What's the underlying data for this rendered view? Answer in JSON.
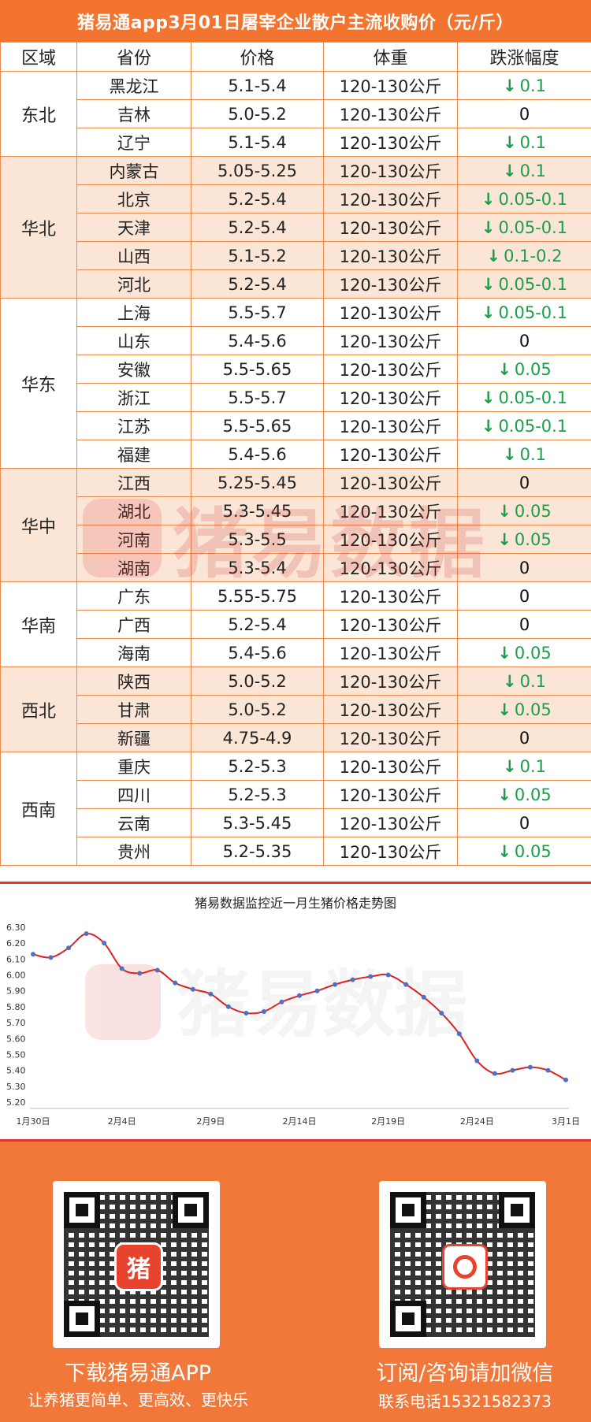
{
  "title": "猪易通app3月01日屠宰企业散户主流收购价（元/斤）",
  "table": {
    "headers": [
      "区域",
      "省份",
      "价格",
      "体重",
      "跌涨幅度"
    ],
    "rows": [
      {
        "region": "东北",
        "province": "黑龙江",
        "price": "5.1-5.4",
        "weight": "120-130公斤",
        "dir": "down",
        "change": "0.1"
      },
      {
        "region": "东北",
        "province": "吉林",
        "price": "5.0-5.2",
        "weight": "120-130公斤",
        "dir": "flat",
        "change": "0"
      },
      {
        "region": "东北",
        "province": "辽宁",
        "price": "5.1-5.4",
        "weight": "120-130公斤",
        "dir": "down",
        "change": "0.1"
      },
      {
        "region": "华北",
        "province": "内蒙古",
        "price": "5.05-5.25",
        "weight": "120-130公斤",
        "dir": "down",
        "change": "0.1"
      },
      {
        "region": "华北",
        "province": "北京",
        "price": "5.2-5.4",
        "weight": "120-130公斤",
        "dir": "down",
        "change": "0.05-0.1"
      },
      {
        "region": "华北",
        "province": "天津",
        "price": "5.2-5.4",
        "weight": "120-130公斤",
        "dir": "down",
        "change": "0.05-0.1"
      },
      {
        "region": "华北",
        "province": "山西",
        "price": "5.1-5.2",
        "weight": "120-130公斤",
        "dir": "down",
        "change": "0.1-0.2"
      },
      {
        "region": "华北",
        "province": "河北",
        "price": "5.2-5.4",
        "weight": "120-130公斤",
        "dir": "down",
        "change": "0.05-0.1"
      },
      {
        "region": "华东",
        "province": "上海",
        "price": "5.5-5.7",
        "weight": "120-130公斤",
        "dir": "down",
        "change": "0.05-0.1"
      },
      {
        "region": "华东",
        "province": "山东",
        "price": "5.4-5.6",
        "weight": "120-130公斤",
        "dir": "flat",
        "change": "0"
      },
      {
        "region": "华东",
        "province": "安徽",
        "price": "5.5-5.65",
        "weight": "120-130公斤",
        "dir": "down",
        "change": "0.05"
      },
      {
        "region": "华东",
        "province": "浙江",
        "price": "5.5-5.7",
        "weight": "120-130公斤",
        "dir": "down",
        "change": "0.05-0.1"
      },
      {
        "region": "华东",
        "province": "江苏",
        "price": "5.5-5.65",
        "weight": "120-130公斤",
        "dir": "down",
        "change": "0.05-0.1"
      },
      {
        "region": "华东",
        "province": "福建",
        "price": "5.4-5.6",
        "weight": "120-130公斤",
        "dir": "down",
        "change": "0.1"
      },
      {
        "region": "华中",
        "province": "江西",
        "price": "5.25-5.45",
        "weight": "120-130公斤",
        "dir": "flat",
        "change": "0"
      },
      {
        "region": "华中",
        "province": "湖北",
        "price": "5.3-5.45",
        "weight": "120-130公斤",
        "dir": "down",
        "change": "0.05"
      },
      {
        "region": "华中",
        "province": "河南",
        "price": "5.3-5.5",
        "weight": "120-130公斤",
        "dir": "down",
        "change": "0.05"
      },
      {
        "region": "华中",
        "province": "湖南",
        "price": "5.3-5.4",
        "weight": "120-130公斤",
        "dir": "flat",
        "change": "0"
      },
      {
        "region": "华南",
        "province": "广东",
        "price": "5.55-5.75",
        "weight": "120-130公斤",
        "dir": "flat",
        "change": "0"
      },
      {
        "region": "华南",
        "province": "广西",
        "price": "5.2-5.4",
        "weight": "120-130公斤",
        "dir": "flat",
        "change": "0"
      },
      {
        "region": "华南",
        "province": "海南",
        "price": "5.4-5.6",
        "weight": "120-130公斤",
        "dir": "down",
        "change": "0.05"
      },
      {
        "region": "西北",
        "province": "陕西",
        "price": "5.0-5.2",
        "weight": "120-130公斤",
        "dir": "down",
        "change": "0.1"
      },
      {
        "region": "西北",
        "province": "甘肃",
        "price": "5.0-5.2",
        "weight": "120-130公斤",
        "dir": "down",
        "change": "0.05"
      },
      {
        "region": "西北",
        "province": "新疆",
        "price": "4.75-4.9",
        "weight": "120-130公斤",
        "dir": "flat",
        "change": "0"
      },
      {
        "region": "西南",
        "province": "重庆",
        "price": "5.2-5.3",
        "weight": "120-130公斤",
        "dir": "down",
        "change": "0.1"
      },
      {
        "region": "西南",
        "province": "四川",
        "price": "5.2-5.3",
        "weight": "120-130公斤",
        "dir": "down",
        "change": "0.05"
      },
      {
        "region": "西南",
        "province": "云南",
        "price": "5.3-5.45",
        "weight": "120-130公斤",
        "dir": "flat",
        "change": "0"
      },
      {
        "region": "西南",
        "province": "贵州",
        "price": "5.2-5.35",
        "weight": "120-130公斤",
        "dir": "down",
        "change": "0.05"
      }
    ],
    "shaded_regions": [
      "华北",
      "华中",
      "西北"
    ],
    "colors": {
      "down": "#1a9f4a",
      "border": "#ee8a4a",
      "shade": "#fbe5d6",
      "header": "#f2742f"
    }
  },
  "watermark": "猪易数据",
  "chart_data": {
    "type": "line",
    "title": "猪易数据监控近一月生猪价格走势图",
    "x_ticks": [
      "1月30日",
      "2月4日",
      "2月9日",
      "2月14日",
      "2月19日",
      "2月24日",
      "3月1日"
    ],
    "x": [
      "1月30日",
      "1月31日",
      "2月1日",
      "2月2日",
      "2月3日",
      "2月4日",
      "2月5日",
      "2月6日",
      "2月7日",
      "2月8日",
      "2月9日",
      "2月10日",
      "2月11日",
      "2月12日",
      "2月13日",
      "2月14日",
      "2月15日",
      "2月16日",
      "2月17日",
      "2月18日",
      "2月19日",
      "2月20日",
      "2月21日",
      "2月22日",
      "2月23日",
      "2月24日",
      "2月25日",
      "2月26日",
      "2月27日",
      "2月28日",
      "3月1日"
    ],
    "values": [
      6.13,
      6.11,
      6.17,
      6.26,
      6.2,
      6.04,
      6.01,
      6.03,
      5.95,
      5.91,
      5.88,
      5.8,
      5.76,
      5.77,
      5.83,
      5.87,
      5.9,
      5.94,
      5.97,
      5.99,
      6.0,
      5.94,
      5.86,
      5.76,
      5.63,
      5.46,
      5.38,
      5.4,
      5.42,
      5.4,
      5.34
    ],
    "ylim": [
      5.2,
      6.3
    ],
    "y_ticks": [
      "6.30",
      "6.20",
      "6.10",
      "6.00",
      "5.90",
      "5.80",
      "5.70",
      "5.60",
      "5.50",
      "5.40",
      "5.30",
      "5.20"
    ],
    "line_color": "#e02020",
    "marker_color": "#4a72c8"
  },
  "footer": {
    "left_title": "下载猪易通APP",
    "left_sub": "让养猪更简单、更高效、更快乐",
    "right_title": "订阅/咨询请加微信",
    "right_sub": "联系电话15321582373",
    "left_logo": "猪"
  }
}
